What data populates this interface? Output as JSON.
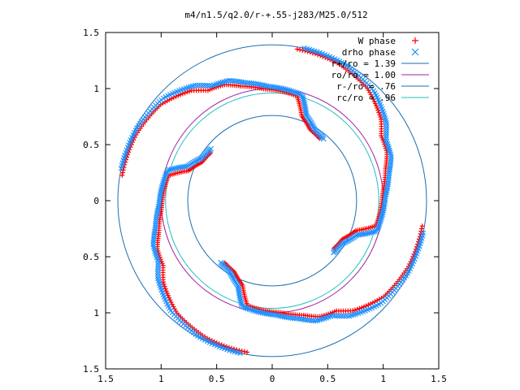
{
  "chart_data": {
    "type": "scatter",
    "title": "m4/n1.5/q2.0/r-+.55-j283/M25.0/512",
    "xlim": [
      -1.5,
      1.5
    ],
    "ylim": [
      -1.5,
      1.5
    ],
    "xticks": [
      -1.5,
      -1,
      -0.5,
      0,
      0.5,
      1,
      1.5
    ],
    "yticks": [
      -1.5,
      -1,
      -0.5,
      0,
      0.5,
      1,
      1.5
    ],
    "xtick_labels": [
      "1.5",
      "1",
      "0.5",
      "0",
      "0.5",
      "1",
      "1.5"
    ],
    "ytick_labels": [
      "1.5",
      "1",
      "0.5",
      "0",
      "0.5",
      "1",
      "1.5"
    ],
    "grid": false,
    "legend_position": "top-right",
    "arms": 4,
    "arm_path_polar": [
      {
        "r": 0.72,
        "theta_deg": 50
      },
      {
        "r": 0.74,
        "theta_deg": 59
      },
      {
        "r": 0.82,
        "theta_deg": 68
      },
      {
        "r": 0.98,
        "theta_deg": 74
      },
      {
        "r": 1.02,
        "theta_deg": 92
      },
      {
        "r": 1.08,
        "theta_deg": 103
      },
      {
        "r": 1.14,
        "theta_deg": 110
      },
      {
        "r": 1.16,
        "theta_deg": 118
      },
      {
        "r": 1.24,
        "theta_deg": 124
      },
      {
        "r": 1.34,
        "theta_deg": 137
      },
      {
        "r": 1.38,
        "theta_deg": 152
      },
      {
        "r": 1.39,
        "theta_deg": 168
      }
    ],
    "series": [
      {
        "name": "W phase",
        "marker": "+",
        "color": "#ff0000",
        "theta_offset_deg": 2.5,
        "r_offset": -0.02
      },
      {
        "name": "drho phase",
        "marker": "x",
        "color": "#1e90ff",
        "theta_offset_deg": 0,
        "r_offset": 0
      }
    ],
    "circles": [
      {
        "label": "r+/ro = 1.39",
        "r": 1.39,
        "color": "#1a6fb5"
      },
      {
        "label": "ro/ro = 1.00",
        "r": 1.0,
        "color": "#a020a0"
      },
      {
        "label": "r-/ro =  .76",
        "r": 0.76,
        "color": "#1a6fb5"
      },
      {
        "label": "rc/ro =  .96",
        "r": 0.96,
        "color": "#20c0c0"
      }
    ]
  }
}
